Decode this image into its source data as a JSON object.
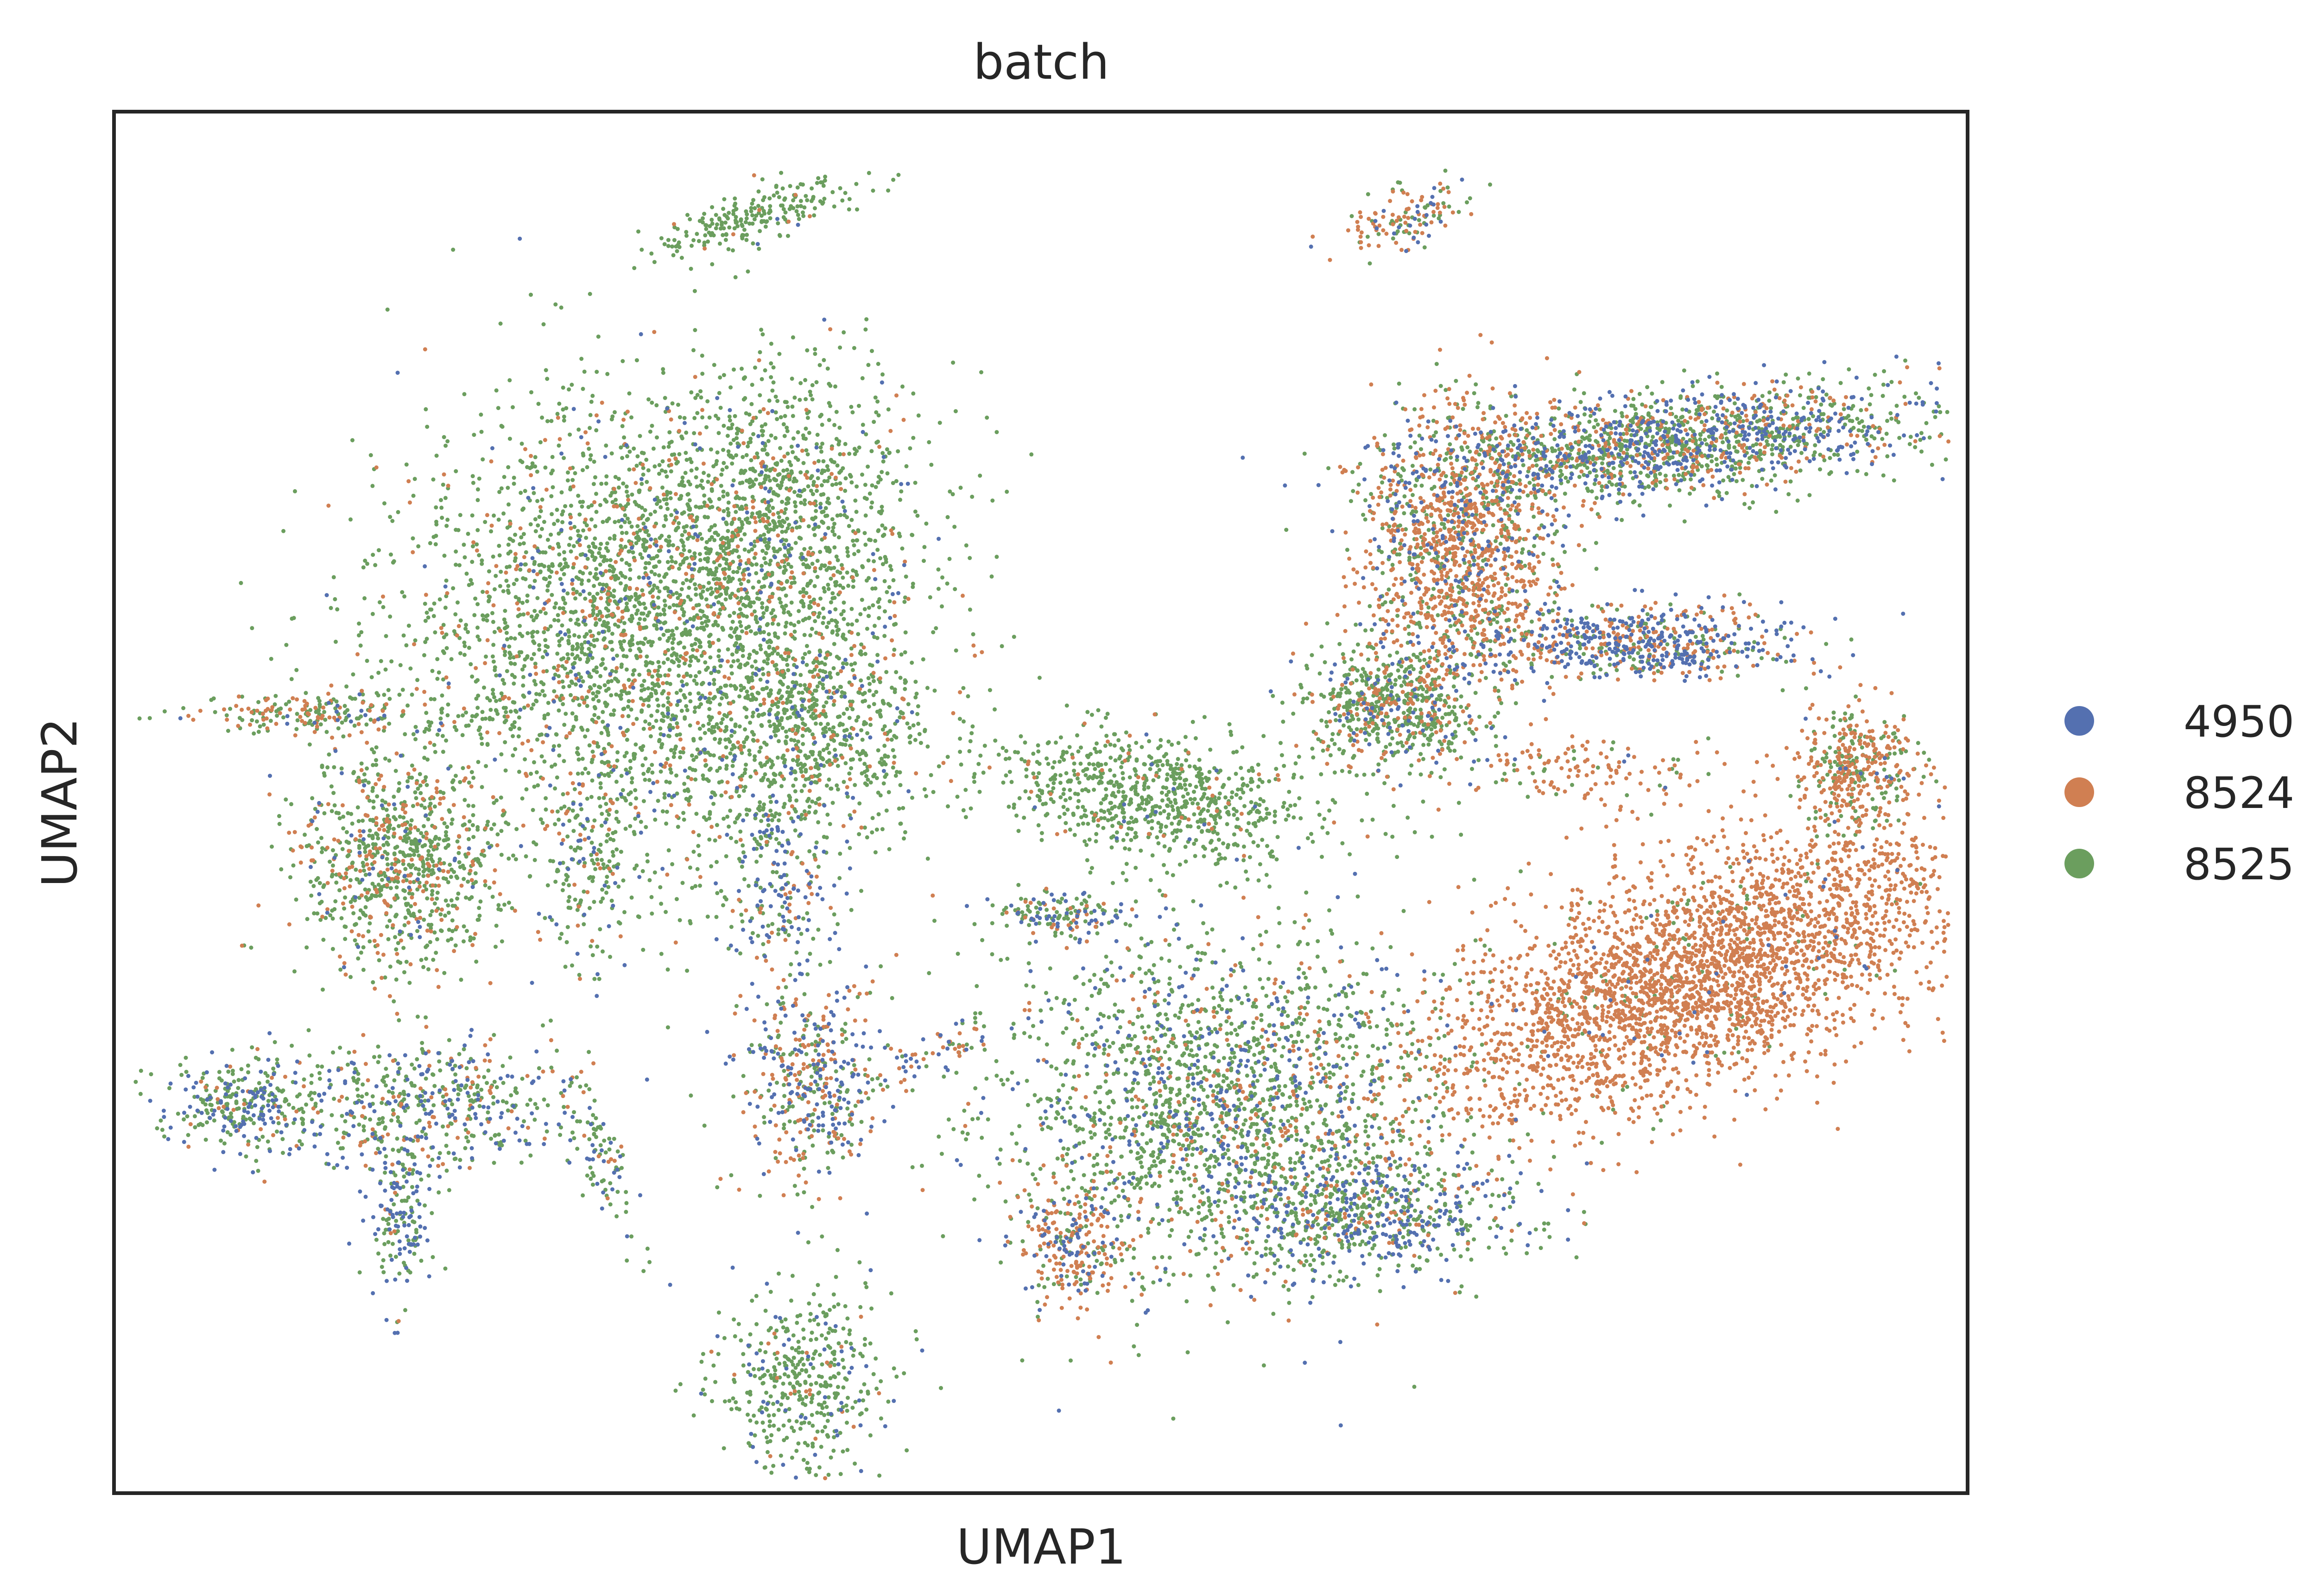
{
  "chart_data": {
    "type": "scatter",
    "title": "batch",
    "xlabel": "UMAP1",
    "ylabel": "UMAP2",
    "xlim": [
      0,
      1
    ],
    "ylim": [
      0,
      1
    ],
    "grid": false,
    "ticks": "none",
    "legend_position": "right-outside",
    "series": [
      {
        "name": "4950",
        "color": "#5470b0"
      },
      {
        "name": "8524",
        "color": "#d07f52"
      },
      {
        "name": "8525",
        "color": "#6b9e5e"
      }
    ],
    "clusters": [
      {
        "center": [
          0.345,
          0.925
        ],
        "spread": [
          0.04,
          0.012
        ],
        "angle": 25,
        "weights": [
          0.03,
          0.05,
          0.92
        ],
        "count": 220
      },
      {
        "center": [
          0.7,
          0.925
        ],
        "spread": [
          0.025,
          0.012
        ],
        "angle": 30,
        "weights": [
          0.2,
          0.4,
          0.4
        ],
        "count": 130
      },
      {
        "center": [
          0.285,
          0.62
        ],
        "spread": [
          0.09,
          0.11
        ],
        "angle": 0,
        "weights": [
          0.06,
          0.12,
          0.82
        ],
        "count": 3200
      },
      {
        "center": [
          0.355,
          0.715
        ],
        "spread": [
          0.055,
          0.07
        ],
        "angle": 0,
        "weights": [
          0.03,
          0.1,
          0.87
        ],
        "count": 900
      },
      {
        "center": [
          0.38,
          0.55
        ],
        "spread": [
          0.04,
          0.05
        ],
        "angle": 0,
        "weights": [
          0.1,
          0.12,
          0.78
        ],
        "count": 600
      },
      {
        "center": [
          0.36,
          0.44
        ],
        "spread": [
          0.018,
          0.045
        ],
        "angle": 0,
        "weights": [
          0.45,
          0.1,
          0.45
        ],
        "count": 200
      },
      {
        "center": [
          0.255,
          0.45
        ],
        "spread": [
          0.015,
          0.05
        ],
        "angle": 0,
        "weights": [
          0.15,
          0.15,
          0.7
        ],
        "count": 150
      },
      {
        "center": [
          0.105,
          0.565
        ],
        "spread": [
          0.045,
          0.01
        ],
        "angle": 0,
        "weights": [
          0.05,
          0.35,
          0.6
        ],
        "count": 200
      },
      {
        "center": [
          0.155,
          0.455
        ],
        "spread": [
          0.035,
          0.05
        ],
        "angle": 0,
        "weights": [
          0.05,
          0.25,
          0.7
        ],
        "count": 850
      },
      {
        "center": [
          0.07,
          0.28
        ],
        "spread": [
          0.03,
          0.025
        ],
        "angle": 0,
        "weights": [
          0.3,
          0.1,
          0.6
        ],
        "count": 320
      },
      {
        "center": [
          0.17,
          0.28
        ],
        "spread": [
          0.05,
          0.03
        ],
        "angle": 0,
        "weights": [
          0.3,
          0.15,
          0.55
        ],
        "count": 500
      },
      {
        "center": [
          0.155,
          0.2
        ],
        "spread": [
          0.012,
          0.04
        ],
        "angle": 0,
        "weights": [
          0.45,
          0.1,
          0.45
        ],
        "count": 180
      },
      {
        "center": [
          0.26,
          0.25
        ],
        "spread": [
          0.01,
          0.05
        ],
        "angle": 15,
        "weights": [
          0.25,
          0.1,
          0.65
        ],
        "count": 100
      },
      {
        "center": [
          0.37,
          0.08
        ],
        "spread": [
          0.03,
          0.045
        ],
        "angle": 0,
        "weights": [
          0.12,
          0.05,
          0.83
        ],
        "count": 450
      },
      {
        "center": [
          0.375,
          0.295
        ],
        "spread": [
          0.025,
          0.05
        ],
        "angle": 0,
        "weights": [
          0.3,
          0.35,
          0.35
        ],
        "count": 450
      },
      {
        "center": [
          0.445,
          0.32
        ],
        "spread": [
          0.03,
          0.01
        ],
        "angle": 30,
        "weights": [
          0.25,
          0.45,
          0.3
        ],
        "count": 70
      },
      {
        "center": [
          0.56,
          0.505
        ],
        "spread": [
          0.06,
          0.03
        ],
        "angle": -15,
        "weights": [
          0.02,
          0.05,
          0.93
        ],
        "count": 800
      },
      {
        "center": [
          0.51,
          0.42
        ],
        "spread": [
          0.025,
          0.012
        ],
        "angle": 0,
        "weights": [
          0.25,
          0.2,
          0.55
        ],
        "count": 150
      },
      {
        "center": [
          0.6,
          0.28
        ],
        "spread": [
          0.08,
          0.085
        ],
        "angle": 0,
        "weights": [
          0.18,
          0.12,
          0.7
        ],
        "count": 2200
      },
      {
        "center": [
          0.68,
          0.2
        ],
        "spread": [
          0.05,
          0.03
        ],
        "angle": 0,
        "weights": [
          0.4,
          0.1,
          0.5
        ],
        "count": 600
      },
      {
        "center": [
          0.52,
          0.18
        ],
        "spread": [
          0.02,
          0.03
        ],
        "angle": 0,
        "weights": [
          0.25,
          0.55,
          0.2
        ],
        "count": 260
      },
      {
        "center": [
          0.69,
          0.57
        ],
        "spread": [
          0.03,
          0.03
        ],
        "angle": 0,
        "weights": [
          0.1,
          0.2,
          0.7
        ],
        "count": 650
      },
      {
        "center": [
          0.725,
          0.68
        ],
        "spread": [
          0.035,
          0.07
        ],
        "angle": 0,
        "weights": [
          0.12,
          0.65,
          0.23
        ],
        "count": 1400
      },
      {
        "center": [
          0.84,
          0.76
        ],
        "spread": [
          0.095,
          0.025
        ],
        "angle": 8,
        "weights": [
          0.3,
          0.2,
          0.5
        ],
        "count": 1700
      },
      {
        "center": [
          0.825,
          0.615
        ],
        "spread": [
          0.055,
          0.018
        ],
        "angle": 0,
        "weights": [
          0.5,
          0.3,
          0.2
        ],
        "count": 650
      },
      {
        "center": [
          0.94,
          0.525
        ],
        "spread": [
          0.022,
          0.03
        ],
        "angle": 0,
        "weights": [
          0.02,
          0.55,
          0.43
        ],
        "count": 400
      },
      {
        "center": [
          0.855,
          0.375
        ],
        "spread": [
          0.11,
          0.05
        ],
        "angle": 32,
        "weights": [
          0.01,
          0.95,
          0.04
        ],
        "count": 3200
      },
      {
        "center": [
          0.79,
          0.52
        ],
        "spread": [
          0.05,
          0.02
        ],
        "angle": 0,
        "weights": [
          0.05,
          0.75,
          0.2
        ],
        "count": 140
      }
    ]
  }
}
